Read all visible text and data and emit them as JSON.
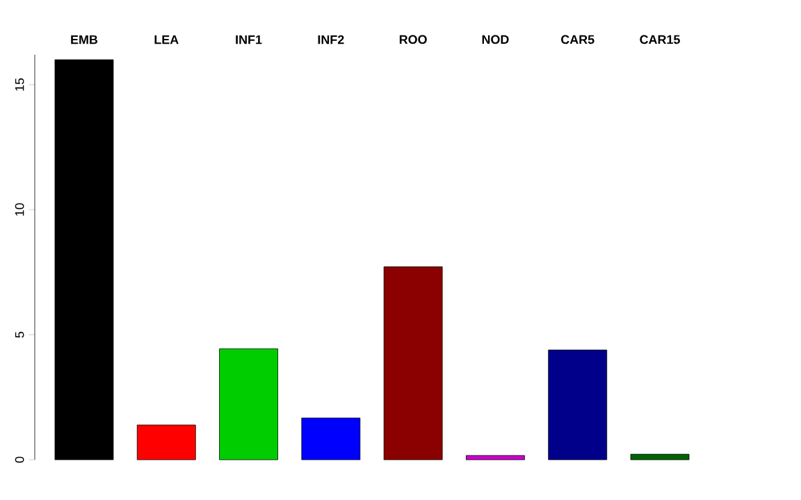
{
  "chart_data": {
    "type": "bar",
    "categories": [
      "EMB",
      "LEA",
      "INF1",
      "INF2",
      "ROO",
      "NOD",
      "CAR5",
      "CAR15"
    ],
    "values": [
      16.0,
      1.39,
      4.44,
      1.67,
      7.72,
      0.17,
      4.39,
      0.22
    ],
    "colors": [
      "#000000",
      "#ff0000",
      "#00cd00",
      "#0000ff",
      "#8b0000",
      "#cd00cd",
      "#00008b",
      "#006400"
    ],
    "ylim": [
      0,
      16.2
    ],
    "yticks": [
      0,
      5,
      10,
      15
    ]
  }
}
